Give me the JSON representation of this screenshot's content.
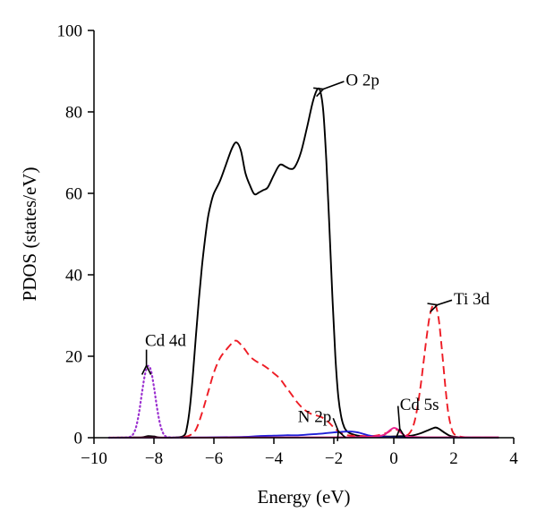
{
  "chart_data": {
    "type": "line",
    "title": "",
    "xlabel": "Energy (eV)",
    "ylabel": "PDOS (states/eV)",
    "xlim": [
      -10,
      4
    ],
    "ylim": [
      0,
      100
    ],
    "xticks": [
      -10,
      -8,
      -6,
      -4,
      -2,
      0,
      2,
      4
    ],
    "yticks": [
      0,
      20,
      40,
      60,
      80,
      100
    ],
    "x_tick_labels": [
      "−10",
      "−8",
      "−6",
      "−4",
      "−2",
      "0",
      "2",
      "4"
    ],
    "y_tick_labels": [
      "0",
      "20",
      "40",
      "60",
      "80",
      "100"
    ],
    "grid": false,
    "legend": "none",
    "series": [
      {
        "name": "O 2p",
        "color": "#000000",
        "style": "solid",
        "x": [
          -9.5,
          -8.8,
          -8.4,
          -8.2,
          -8.0,
          -7.8,
          -7.3,
          -7.0,
          -6.9,
          -6.8,
          -6.7,
          -6.6,
          -6.5,
          -6.4,
          -6.3,
          -6.2,
          -6.1,
          -6.0,
          -5.8,
          -5.6,
          -5.4,
          -5.25,
          -5.1,
          -4.95,
          -4.8,
          -4.65,
          -4.5,
          -4.35,
          -4.2,
          -4.0,
          -3.8,
          -3.6,
          -3.45,
          -3.3,
          -3.1,
          -2.9,
          -2.7,
          -2.55,
          -2.45,
          -2.35,
          -2.25,
          -2.15,
          -2.05,
          -1.95,
          -1.85,
          -1.75,
          -1.65,
          -1.55,
          -1.4,
          -1.2,
          -0.9,
          -0.6,
          -0.3,
          0.0,
          0.3,
          0.6,
          0.9,
          1.1,
          1.3,
          1.4,
          1.5,
          1.7,
          1.9,
          2.2,
          2.6,
          3.0,
          3.5
        ],
        "y": [
          0,
          0.05,
          0.1,
          0.4,
          0.3,
          0.05,
          0.05,
          0.5,
          2.5,
          7.5,
          15.5,
          25,
          34,
          42,
          48.5,
          54,
          57.5,
          60,
          63,
          67,
          71,
          72.5,
          70.5,
          65,
          62,
          59.8,
          60.2,
          60.8,
          61.5,
          64.5,
          67,
          66.5,
          66,
          66.5,
          70,
          76,
          82.5,
          85.5,
          85,
          80,
          68,
          52,
          35,
          20,
          10,
          5,
          2.5,
          1.5,
          0.9,
          0.5,
          0.3,
          0.3,
          0.3,
          0.3,
          0.4,
          0.5,
          1.1,
          1.7,
          2.3,
          2.5,
          2.2,
          1.2,
          0.4,
          0.1,
          0.05,
          0.05,
          0.05
        ]
      },
      {
        "name": "Ti 3d",
        "color": "#ee1c25",
        "style": "dashed",
        "x": [
          -7.0,
          -6.8,
          -6.6,
          -6.4,
          -6.2,
          -6.0,
          -5.8,
          -5.6,
          -5.4,
          -5.3,
          -5.2,
          -5.0,
          -4.8,
          -4.6,
          -4.4,
          -4.2,
          -4.0,
          -3.8,
          -3.6,
          -3.4,
          -3.2,
          -3.0,
          -2.8,
          -2.6,
          -2.4,
          -2.2,
          -2.0,
          -1.8,
          -1.6,
          -1.4,
          -1.2,
          -1.0,
          -0.8,
          -0.6,
          -0.4,
          -0.2,
          -0.1,
          0.0,
          0.1,
          0.2,
          0.3,
          0.4,
          0.5,
          0.6,
          0.7,
          0.8,
          0.9,
          1.0,
          1.1,
          1.2,
          1.3,
          1.35,
          1.4,
          1.5,
          1.6,
          1.7,
          1.8,
          1.9,
          2.0,
          2.2,
          2.5,
          3.0,
          3.5
        ],
        "y": [
          0.2,
          0.6,
          2,
          6,
          11,
          16,
          19.5,
          21.5,
          23.2,
          23.8,
          23.6,
          22,
          20,
          18.8,
          18,
          17,
          15.8,
          14.5,
          12.5,
          10.5,
          8.5,
          7,
          6,
          5.5,
          5,
          4,
          2.5,
          1.3,
          0.7,
          0.5,
          0.4,
          0.4,
          0.4,
          0.5,
          0.8,
          1.3,
          1.8,
          2.1,
          2.0,
          1.5,
          0.9,
          0.6,
          0.9,
          2.0,
          4.2,
          8,
          13,
          19,
          25,
          30,
          32.5,
          32.8,
          32.5,
          29,
          22,
          14,
          7,
          3,
          1,
          0.3,
          0.1,
          0.05,
          0.05
        ]
      },
      {
        "name": "N 2p",
        "color": "#1f1fd6",
        "style": "solid",
        "x": [
          -9.5,
          -7.0,
          -6.0,
          -5.0,
          -4.5,
          -4.0,
          -3.6,
          -3.2,
          -2.8,
          -2.4,
          -2.0,
          -1.8,
          -1.6,
          -1.4,
          -1.2,
          -1.0,
          -0.8,
          -0.5,
          0.0,
          0.5,
          1.0,
          2.0,
          3.5
        ],
        "y": [
          0,
          0.05,
          0.1,
          0.2,
          0.4,
          0.5,
          0.6,
          0.6,
          0.8,
          1.0,
          1.3,
          1.4,
          1.5,
          1.5,
          1.3,
          0.9,
          0.5,
          0.2,
          0.1,
          0.05,
          0.05,
          0.05,
          0.05
        ]
      },
      {
        "name": "Cd 5s",
        "color": "#e91e8c",
        "style": "solid",
        "x": [
          -9.5,
          -6.0,
          -2.0,
          -1.0,
          -0.5,
          -0.3,
          -0.2,
          -0.1,
          0.0,
          0.1,
          0.2,
          0.3,
          0.4,
          0.6,
          1.0,
          2.0,
          3.5
        ],
        "y": [
          0.05,
          0.05,
          0.1,
          0.2,
          0.4,
          0.8,
          1.4,
          2.0,
          2.4,
          2.2,
          1.6,
          0.9,
          0.4,
          0.2,
          0.1,
          0.1,
          0.1
        ]
      },
      {
        "name": "Cd 4d",
        "color": "#9b30d0",
        "style": "dotted",
        "x": [
          -9.5,
          -9.0,
          -8.8,
          -8.7,
          -8.6,
          -8.5,
          -8.4,
          -8.3,
          -8.2,
          -8.1,
          -8.0,
          -7.9,
          -7.8,
          -7.7,
          -7.6,
          -7.4,
          -7.0
        ],
        "y": [
          0,
          0.05,
          0.2,
          0.8,
          2.5,
          6,
          11,
          15.5,
          17.6,
          16.5,
          12.5,
          7.5,
          3.5,
          1.2,
          0.3,
          0.05,
          0
        ]
      }
    ],
    "annotations": [
      {
        "name": "O 2p",
        "label_x": -1.6,
        "label_y": 86.5,
        "arrow_x": -2.35,
        "arrow_y": 85.6
      },
      {
        "name": "Ti 3d",
        "label_x": 2.0,
        "label_y": 32.8,
        "arrow_x": 1.45,
        "arrow_y": 32.6
      },
      {
        "name": "Cd 4d",
        "label_x": -8.3,
        "label_y": 22.5,
        "arrow_x": -8.25,
        "arrow_y": 17.7
      },
      {
        "name": "N 2p",
        "label_x": -3.2,
        "label_y": 3.8,
        "arrow_x": -1.85,
        "arrow_y": 1.6
      },
      {
        "name": "Cd 5s",
        "label_x": 0.2,
        "label_y": 6.8,
        "arrow_x": 0.2,
        "arrow_y": 2.2
      }
    ]
  }
}
